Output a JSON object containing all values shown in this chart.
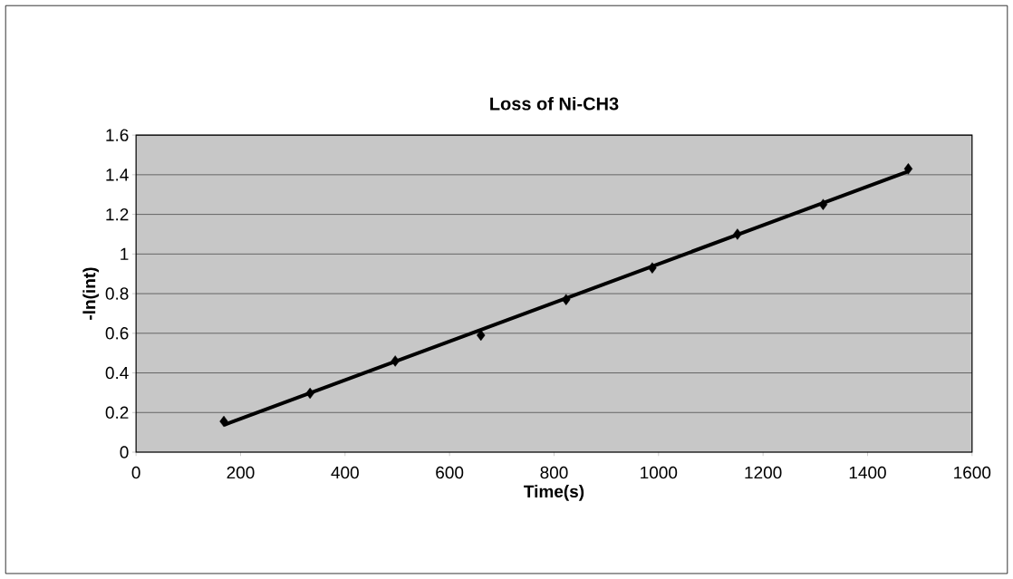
{
  "chart_data": {
    "type": "scatter",
    "title": "Loss of Ni-CH3",
    "xlabel": "Time(s)",
    "ylabel": "-ln(int)",
    "xlim": [
      0,
      1600
    ],
    "xticks": [
      0,
      200,
      400,
      600,
      800,
      1000,
      1200,
      1400,
      1600
    ],
    "ylim": [
      0,
      1.6
    ],
    "yticks": [
      0,
      0.2,
      0.4,
      0.6,
      0.8,
      {
        "value": 1,
        "label": "1"
      },
      1.2,
      1.4,
      1.6
    ],
    "grid": "y",
    "series": [
      {
        "marker": "diamond",
        "color": "#000000",
        "x": [
          168,
          333,
          496,
          660,
          823,
          988,
          1151,
          1315,
          1478
        ],
        "values": [
          0.155,
          0.297,
          0.46,
          0.59,
          0.77,
          0.93,
          1.1,
          1.25,
          1.43
        ]
      },
      {
        "type": "line",
        "marker": "none",
        "color": "#000000",
        "x": [
          168,
          1478
        ],
        "values": [
          0.137,
          1.417
        ]
      }
    ]
  }
}
